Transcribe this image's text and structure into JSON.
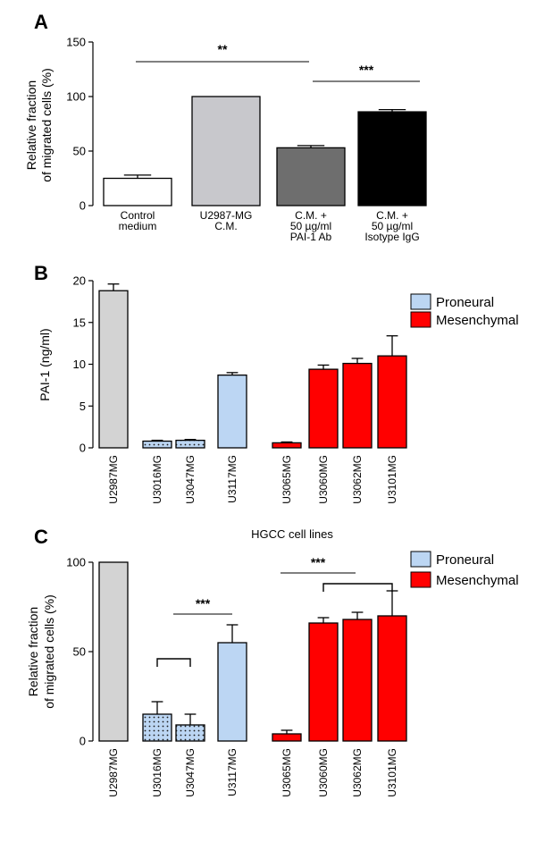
{
  "chart_data": [
    {
      "panel": "A",
      "type": "bar",
      "ylabel": [
        "Relative fraction",
        "of migrated cells (%)"
      ],
      "ylim": [
        0,
        150
      ],
      "yticks": [
        0,
        50,
        100,
        150
      ],
      "categories": [
        [
          "Control",
          "medium"
        ],
        [
          "U2987-MG",
          "C.M."
        ],
        [
          "C.M. +",
          "50 µg/ml",
          "PAI-1 Ab"
        ],
        [
          "C.M. +",
          "50 µg/ml",
          "Isotype IgG"
        ]
      ],
      "values": [
        25,
        100,
        53,
        86
      ],
      "errors": [
        3,
        0,
        2,
        2
      ],
      "colors": [
        "#ffffff",
        "#c8c8cc",
        "#6e6e6e",
        "#000000"
      ],
      "significance": [
        {
          "label": "**",
          "from": 0,
          "to": 2
        },
        {
          "label": "***",
          "from": 2,
          "to": 3
        }
      ]
    },
    {
      "panel": "B",
      "type": "bar",
      "ylabel": [
        "PAI-1 (ng/ml)"
      ],
      "ylim": [
        0,
        20
      ],
      "yticks": [
        0,
        5,
        10,
        15,
        20
      ],
      "categories": [
        "U2987MG",
        "U3016MG",
        "U3047MG",
        "U3117MG",
        "U3065MG",
        "U3060MG",
        "U3062MG",
        "U3101MG"
      ],
      "values": [
        18.8,
        0.8,
        0.9,
        8.7,
        0.6,
        9.4,
        10.1,
        11.0
      ],
      "errors": [
        0.8,
        0.1,
        0.1,
        0.3,
        0.1,
        0.5,
        0.6,
        2.4
      ],
      "colors": [
        "#d3d3d3",
        "#bcd6f3",
        "#bcd6f3",
        "#bcd6f3",
        "#ff0000",
        "#ff0000",
        "#ff0000",
        "#ff0000"
      ],
      "dotted": [
        false,
        true,
        true,
        false,
        false,
        false,
        false,
        false
      ],
      "legend": [
        {
          "label": "Proneural",
          "color": "#bcd6f3"
        },
        {
          "label": "Mesenchymal",
          "color": "#ff0000"
        }
      ]
    },
    {
      "panel": "C",
      "type": "bar",
      "title": "HGCC cell lines",
      "ylabel": [
        "Relative fraction",
        "of migrated cells (%)"
      ],
      "ylim": [
        0,
        100
      ],
      "yticks": [
        0,
        50,
        100
      ],
      "categories": [
        "U2987MG",
        "U3016MG",
        "U3047MG",
        "U3117MG",
        "U3065MG",
        "U3060MG",
        "U3062MG",
        "U3101MG"
      ],
      "values": [
        100,
        15,
        9,
        55,
        4,
        66,
        68,
        70
      ],
      "errors": [
        0,
        7,
        6,
        10,
        2,
        3,
        4,
        14
      ],
      "colors": [
        "#d3d3d3",
        "#bcd6f3",
        "#bcd6f3",
        "#bcd6f3",
        "#ff0000",
        "#ff0000",
        "#ff0000",
        "#ff0000"
      ],
      "dotted": [
        false,
        true,
        true,
        false,
        false,
        false,
        false,
        false
      ],
      "significance": [
        {
          "label": "***",
          "from": 1.5,
          "to": 3
        },
        {
          "label": "***",
          "from": 4,
          "to": 6
        }
      ],
      "legend": [
        {
          "label": "Proneural",
          "color": "#bcd6f3"
        },
        {
          "label": "Mesenchymal",
          "color": "#ff0000"
        }
      ]
    }
  ]
}
